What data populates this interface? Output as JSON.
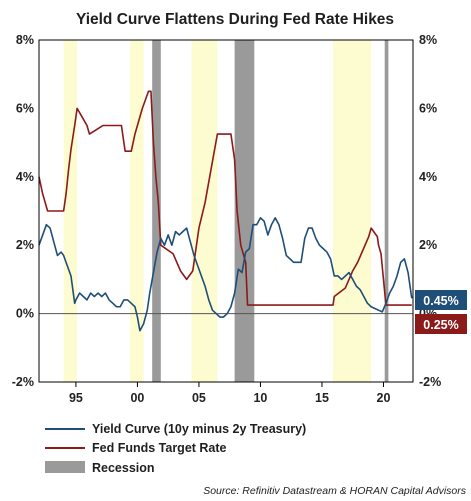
{
  "chart_data": {
    "type": "line",
    "title": "Yield Curve Flattens During Fed Rate Hikes",
    "xlim": [
      1992.0,
      2022.4
    ],
    "ylim": [
      -2,
      8
    ],
    "y_ticks": [
      "-2%",
      "0%",
      "2%",
      "4%",
      "6%",
      "8%"
    ],
    "y_tick_values": [
      -2,
      0,
      2,
      4,
      6,
      8
    ],
    "x_ticks": [
      "95",
      "00",
      "05",
      "10",
      "15",
      "20"
    ],
    "x_tick_values": [
      1995,
      2000,
      2005,
      2010,
      2015,
      2020
    ],
    "series": [
      {
        "name": "Yield Curve (10y minus 2y Treasury)",
        "color": "#1f4e79",
        "x": [
          1992.0,
          1992.3,
          1992.6,
          1992.9,
          1993.2,
          1993.5,
          1993.8,
          1994.0,
          1994.3,
          1994.6,
          1994.9,
          1995.0,
          1995.3,
          1995.6,
          1995.9,
          1996.2,
          1996.5,
          1996.8,
          1997.1,
          1997.4,
          1997.7,
          1998.0,
          1998.3,
          1998.6,
          1998.9,
          1999.2,
          1999.5,
          1999.8,
          2000.0,
          2000.2,
          2000.5,
          2000.8,
          2001.0,
          2001.3,
          2001.6,
          2001.9,
          2002.2,
          2002.5,
          2002.8,
          2003.1,
          2003.4,
          2003.7,
          2004.0,
          2004.3,
          2004.6,
          2004.9,
          2005.2,
          2005.5,
          2005.8,
          2006.1,
          2006.4,
          2006.7,
          2007.0,
          2007.3,
          2007.6,
          2007.9,
          2008.2,
          2008.5,
          2008.8,
          2009.1,
          2009.4,
          2009.7,
          2010.0,
          2010.3,
          2010.6,
          2010.9,
          2011.2,
          2011.5,
          2011.8,
          2012.1,
          2012.4,
          2012.7,
          2013.0,
          2013.3,
          2013.6,
          2013.9,
          2014.2,
          2014.5,
          2014.8,
          2015.1,
          2015.4,
          2015.7,
          2016.0,
          2016.3,
          2016.6,
          2016.9,
          2017.2,
          2017.5,
          2017.8,
          2018.1,
          2018.4,
          2018.7,
          2019.0,
          2019.3,
          2019.6,
          2019.9,
          2020.2,
          2020.5,
          2020.8,
          2021.1,
          2021.4,
          2021.7,
          2022.0,
          2022.3
        ],
        "values": [
          2.0,
          2.3,
          2.6,
          2.5,
          2.1,
          1.7,
          1.8,
          1.7,
          1.4,
          1.1,
          0.3,
          0.4,
          0.6,
          0.5,
          0.4,
          0.6,
          0.5,
          0.6,
          0.5,
          0.6,
          0.4,
          0.3,
          0.2,
          0.2,
          0.4,
          0.4,
          0.3,
          0.2,
          -0.1,
          -0.5,
          -0.3,
          0.1,
          0.6,
          1.2,
          1.8,
          2.2,
          2.0,
          2.3,
          2.0,
          2.4,
          2.3,
          2.4,
          2.5,
          2.1,
          1.7,
          1.4,
          1.1,
          0.8,
          0.4,
          0.1,
          0.0,
          -0.1,
          -0.1,
          0.0,
          0.2,
          0.6,
          1.3,
          1.2,
          1.8,
          1.9,
          2.6,
          2.6,
          2.8,
          2.7,
          2.3,
          2.6,
          2.8,
          2.6,
          2.2,
          1.7,
          1.6,
          1.5,
          1.5,
          1.5,
          2.2,
          2.5,
          2.5,
          2.2,
          2.0,
          1.9,
          1.8,
          1.6,
          1.1,
          1.1,
          1.0,
          1.1,
          1.2,
          1.0,
          0.8,
          0.7,
          0.5,
          0.3,
          0.2,
          0.15,
          0.1,
          0.05,
          0.3,
          0.6,
          0.8,
          1.1,
          1.5,
          1.6,
          1.2,
          0.45
        ],
        "end_label": "0.45%"
      },
      {
        "name": "Fed Funds Target Rate",
        "color": "#8b1a1a",
        "x": [
          1992.0,
          1992.3,
          1992.7,
          1993.0,
          1994.0,
          1994.2,
          1994.4,
          1994.6,
          1994.9,
          1995.1,
          1995.5,
          1995.9,
          1996.1,
          1997.2,
          1998.0,
          1998.7,
          1998.9,
          1999.0,
          1999.5,
          1999.8,
          2000.0,
          2000.4,
          2000.9,
          2001.1,
          2001.3,
          2001.5,
          2001.7,
          2001.9,
          2002.9,
          2003.5,
          2004.0,
          2004.5,
          2005.0,
          2005.5,
          2006.0,
          2006.5,
          2007.6,
          2007.9,
          2008.1,
          2008.4,
          2008.8,
          2008.95,
          2015.9,
          2016.0,
          2016.9,
          2017.2,
          2017.5,
          2017.9,
          2018.2,
          2018.5,
          2018.8,
          2019.0,
          2019.5,
          2019.6,
          2019.8,
          2020.2,
          2022.2,
          2022.3
        ],
        "values": [
          4.0,
          3.5,
          3.0,
          3.0,
          3.0,
          3.5,
          4.2,
          4.8,
          5.5,
          6.0,
          5.75,
          5.5,
          5.25,
          5.5,
          5.5,
          5.5,
          5.0,
          4.75,
          4.75,
          5.25,
          5.5,
          6.0,
          6.5,
          6.5,
          5.0,
          4.0,
          3.25,
          2.0,
          1.75,
          1.25,
          1.0,
          1.25,
          2.5,
          3.25,
          4.25,
          5.25,
          5.25,
          4.5,
          3.0,
          2.0,
          1.5,
          0.25,
          0.25,
          0.5,
          0.75,
          1.0,
          1.25,
          1.5,
          1.75,
          2.0,
          2.25,
          2.5,
          2.25,
          2.0,
          1.75,
          0.25,
          0.25,
          0.25
        ],
        "end_label": "0.25%"
      },
      {
        "name": "Recession",
        "color": "#9a9a9a",
        "periods": [
          [
            2001.2,
            2001.9
          ],
          [
            2007.9,
            2009.5
          ],
          [
            2020.1,
            2020.4
          ]
        ]
      }
    ],
    "shaded_hike_periods": {
      "color": "#fdfbd0",
      "periods": [
        [
          1994.0,
          1995.1
        ],
        [
          1999.4,
          2000.5
        ],
        [
          2004.4,
          2006.5
        ],
        [
          2015.9,
          2019.0
        ]
      ]
    },
    "legend_position": "bottom-left",
    "source": "Source: Refinitiv Datastream & HORAN Capital Advisors"
  }
}
